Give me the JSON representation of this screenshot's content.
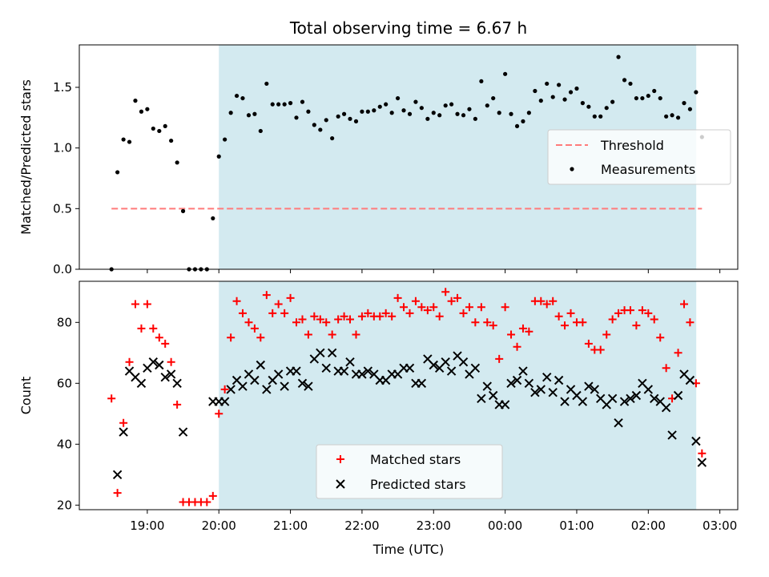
{
  "chart_data": {
    "title": "Total observing time = 6.67 h",
    "xlabel": "Time (UTC)",
    "x_unit": "hours UTC (values past 24 are after midnight)",
    "xlim": [
      18.05,
      27.25
    ],
    "shaded_interval": {
      "start": 20.0,
      "end": 26.67,
      "color": "#d3eaf0"
    },
    "x_ticks": [
      {
        "value": 19,
        "label": "19:00"
      },
      {
        "value": 20,
        "label": "20:00"
      },
      {
        "value": 21,
        "label": "21:00"
      },
      {
        "value": 22,
        "label": "22:00"
      },
      {
        "value": 23,
        "label": "23:00"
      },
      {
        "value": 24,
        "label": "00:00"
      },
      {
        "value": 25,
        "label": "01:00"
      },
      {
        "value": 26,
        "label": "02:00"
      },
      {
        "value": 27,
        "label": "03:00"
      }
    ],
    "time": [
      18.5,
      18.583,
      18.667,
      18.75,
      18.833,
      18.917,
      19.0,
      19.083,
      19.167,
      19.25,
      19.333,
      19.417,
      19.5,
      19.583,
      19.667,
      19.75,
      19.833,
      19.917,
      20.0,
      20.083,
      20.167,
      20.25,
      20.333,
      20.417,
      20.5,
      20.583,
      20.667,
      20.75,
      20.833,
      20.917,
      21.0,
      21.083,
      21.167,
      21.25,
      21.333,
      21.417,
      21.5,
      21.583,
      21.667,
      21.75,
      21.833,
      21.917,
      22.0,
      22.083,
      22.167,
      22.25,
      22.333,
      22.417,
      22.5,
      22.583,
      22.667,
      22.75,
      22.833,
      22.917,
      23.0,
      23.083,
      23.167,
      23.25,
      23.333,
      23.417,
      23.5,
      23.583,
      23.667,
      23.75,
      23.833,
      23.917,
      24.0,
      24.083,
      24.167,
      24.25,
      24.333,
      24.417,
      24.5,
      24.583,
      24.667,
      24.75,
      24.833,
      24.917,
      25.0,
      25.083,
      25.167,
      25.25,
      25.333,
      25.417,
      25.5,
      25.583,
      25.667,
      25.75,
      25.833,
      25.917,
      26.0,
      26.083,
      26.167,
      26.25,
      26.333,
      26.417,
      26.5,
      26.583,
      26.667,
      26.75
    ],
    "panels": [
      {
        "type": "scatter",
        "ylabel": "Matched/Predicted stars",
        "ylim": [
          0,
          1.85
        ],
        "y_ticks": [
          {
            "value": 0,
            "label": "0.0"
          },
          {
            "value": 0.5,
            "label": "0.5"
          },
          {
            "value": 1.0,
            "label": "1.0"
          },
          {
            "value": 1.5,
            "label": "1.5"
          }
        ],
        "threshold": {
          "name": "Threshold",
          "value": 0.5,
          "x_range": [
            18.5,
            26.75
          ],
          "color": "#ff7b7b"
        },
        "series": [
          {
            "name": "Measurements",
            "marker": "dot",
            "color": "#000000",
            "values": [
              0.0,
              0.8,
              1.07,
              1.05,
              1.39,
              1.3,
              1.32,
              1.16,
              1.14,
              1.18,
              1.06,
              0.88,
              0.48,
              0.0,
              0.0,
              0.0,
              0.0,
              0.42,
              0.93,
              1.07,
              1.29,
              1.43,
              1.41,
              1.27,
              1.28,
              1.14,
              1.53,
              1.36,
              1.36,
              1.36,
              1.37,
              1.25,
              1.38,
              1.3,
              1.19,
              1.15,
              1.23,
              1.08,
              1.26,
              1.28,
              1.24,
              1.22,
              1.3,
              1.3,
              1.31,
              1.34,
              1.36,
              1.29,
              1.41,
              1.31,
              1.28,
              1.38,
              1.33,
              1.24,
              1.29,
              1.27,
              1.35,
              1.36,
              1.28,
              1.27,
              1.32,
              1.24,
              1.55,
              1.35,
              1.41,
              1.29,
              1.61,
              1.28,
              1.18,
              1.22,
              1.29,
              1.47,
              1.39,
              1.53,
              1.42,
              1.52,
              1.4,
              1.46,
              1.49,
              1.37,
              1.34,
              1.26,
              1.26,
              1.33,
              1.38,
              1.75,
              1.56,
              1.53,
              1.41,
              1.41,
              1.43,
              1.47,
              1.41,
              1.26,
              1.27,
              1.25,
              1.37,
              1.32,
              1.46,
              1.09
            ]
          }
        ],
        "legend": {
          "position": "right",
          "entries": [
            "Threshold",
            "Measurements"
          ]
        }
      },
      {
        "type": "scatter",
        "ylabel": "Count",
        "ylim": [
          18.5,
          93.5
        ],
        "y_ticks": [
          {
            "value": 20,
            "label": "20"
          },
          {
            "value": 40,
            "label": "40"
          },
          {
            "value": 60,
            "label": "60"
          },
          {
            "value": 80,
            "label": "80"
          }
        ],
        "series": [
          {
            "name": "Matched stars",
            "marker": "plus",
            "color": "#ff0000",
            "values": [
              55,
              24,
              47,
              67,
              86,
              78,
              86,
              78,
              75,
              73,
              67,
              53,
              21,
              21,
              21,
              21,
              21,
              23,
              50,
              58,
              75,
              87,
              83,
              80,
              78,
              75,
              89,
              83,
              86,
              83,
              88,
              80,
              81,
              76,
              82,
              81,
              80,
              76,
              81,
              82,
              81,
              76,
              82,
              83,
              82,
              82,
              83,
              82,
              88,
              85,
              83,
              87,
              85,
              84,
              85,
              82,
              90,
              87,
              88,
              83,
              85,
              80,
              85,
              80,
              79,
              68,
              85,
              76,
              72,
              78,
              77,
              87,
              87,
              86,
              87,
              82,
              79,
              83,
              80,
              80,
              73,
              71,
              71,
              76,
              81,
              83,
              84,
              84,
              79,
              84,
              83,
              81,
              75,
              65,
              55,
              70,
              86,
              80,
              60,
              37
            ]
          },
          {
            "name": "Predicted stars",
            "marker": "x",
            "color": "#000000",
            "values": [
              null,
              30,
              44,
              64,
              62,
              60,
              65,
              67,
              66,
              62,
              63,
              60,
              44,
              null,
              null,
              null,
              null,
              54,
              54,
              54,
              58,
              61,
              59,
              63,
              61,
              66,
              58,
              61,
              63,
              59,
              64,
              64,
              60,
              59,
              68,
              70,
              65,
              70,
              64,
              64,
              67,
              63,
              63,
              64,
              63,
              61,
              61,
              63,
              63,
              65,
              65,
              60,
              60,
              68,
              66,
              65,
              67,
              64,
              69,
              67,
              63,
              65,
              55,
              59,
              56,
              53,
              53,
              60,
              61,
              64,
              60,
              57,
              58,
              62,
              57,
              61,
              54,
              58,
              56,
              54,
              59,
              58,
              55,
              53,
              55,
              47,
              54,
              55,
              56,
              60,
              58,
              55,
              54,
              52,
              43,
              56,
              63,
              61,
              41,
              34
            ]
          }
        ],
        "legend": {
          "position": "lower center",
          "entries": [
            "Matched stars",
            "Predicted stars"
          ]
        }
      }
    ]
  }
}
